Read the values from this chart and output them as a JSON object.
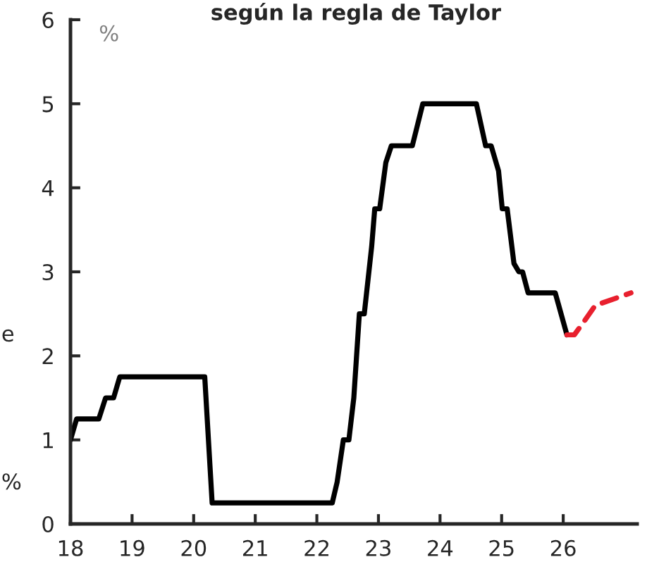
{
  "chart_data": {
    "type": "line",
    "title": "según la regla de Taylor",
    "ylabel": "%",
    "annotations": [
      "e",
      "%"
    ],
    "series": [
      {
        "color": "#000000",
        "line_style": "solid",
        "x": [
          18.0,
          18.1,
          18.46,
          18.57,
          18.7,
          18.8,
          20.18,
          20.3,
          22.25,
          22.33,
          22.43,
          22.52,
          22.6,
          22.69,
          22.77,
          22.89,
          22.94,
          23.02,
          23.12,
          23.21,
          23.55,
          23.72,
          24.59,
          24.74,
          24.83,
          24.95,
          25.01,
          25.09,
          25.2,
          25.28,
          25.34,
          25.43,
          25.87,
          26.06
        ],
        "values": [
          1.0,
          1.25,
          1.25,
          1.5,
          1.5,
          1.75,
          1.75,
          0.25,
          0.25,
          0.5,
          1.0,
          1.0,
          1.5,
          2.5,
          2.5,
          3.3,
          3.75,
          3.75,
          4.3,
          4.5,
          4.5,
          5.0,
          5.0,
          4.5,
          4.5,
          4.2,
          3.75,
          3.75,
          3.1,
          3.0,
          3.0,
          2.75,
          2.75,
          2.25
        ]
      },
      {
        "color": "#e8202e",
        "line_style": "dashed",
        "x": [
          26.06,
          26.18,
          26.33,
          26.52,
          27.1
        ],
        "values": [
          2.25,
          2.25,
          2.4,
          2.6,
          2.75
        ]
      }
    ],
    "xlim": [
      18,
      27.2
    ],
    "xticks": [
      18,
      19,
      20,
      21,
      22,
      23,
      24,
      25,
      26
    ],
    "ylim": [
      0,
      6
    ],
    "yticks": [
      0,
      1,
      2,
      3,
      4,
      5,
      6
    ],
    "grid": false,
    "legend": false,
    "marker": "none"
  }
}
